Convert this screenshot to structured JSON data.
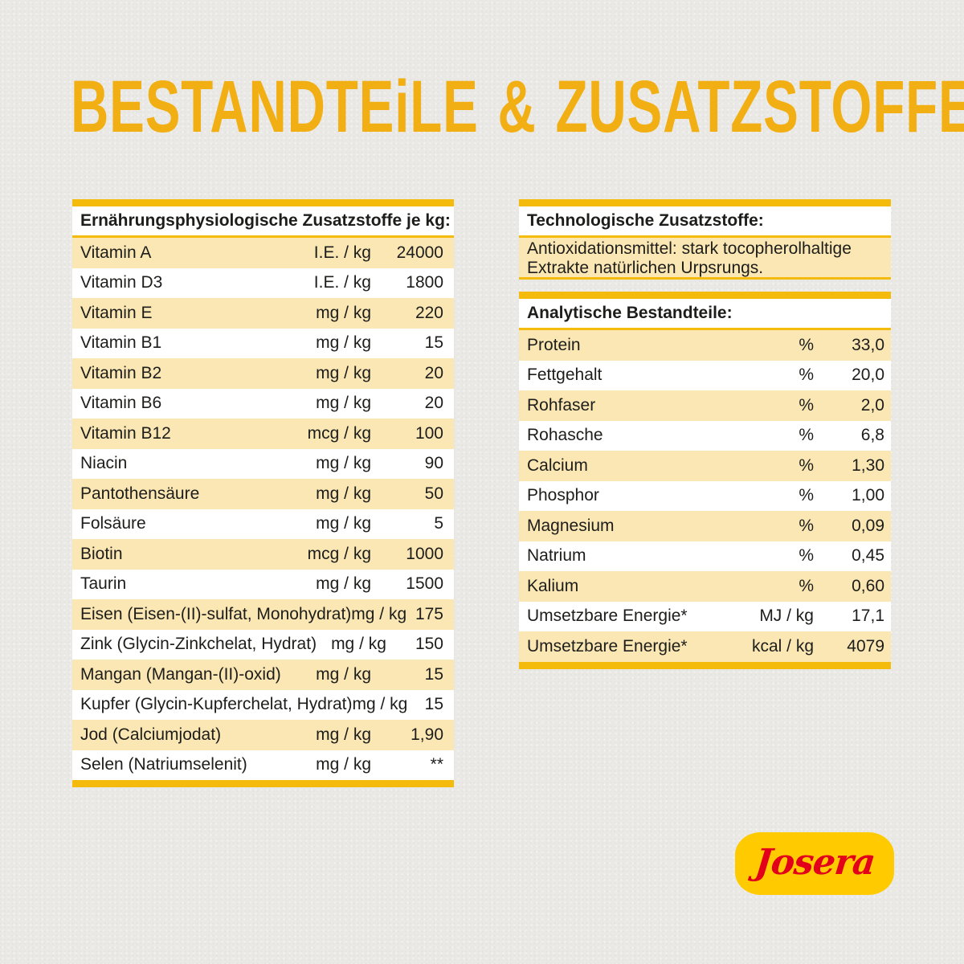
{
  "page": {
    "title": "BESTANDTEiLE & ZUSATZSTOFFE"
  },
  "colors": {
    "paper_background": "#EAE9E6",
    "title_gold": "#F2AF14",
    "bar_gold": "#F5BB0C",
    "row_cream": "#FAE7B4",
    "row_white": "#FFFFFF",
    "text": "#1D1D1B",
    "logo_yellow": "#FFCB00",
    "logo_red": "#E2001A"
  },
  "left_table": {
    "header": "Ernährungsphysiologische Zusatzstoffe je kg:",
    "rows": [
      {
        "name": "Vitamin A",
        "unit": "I.E. / kg",
        "value": "24000"
      },
      {
        "name": "Vitamin D3",
        "unit": "I.E. / kg",
        "value": "1800"
      },
      {
        "name": "Vitamin E",
        "unit": "mg / kg",
        "value": "220"
      },
      {
        "name": "Vitamin B1",
        "unit": "mg / kg",
        "value": "15"
      },
      {
        "name": "Vitamin B2",
        "unit": "mg / kg",
        "value": "20"
      },
      {
        "name": "Vitamin B6",
        "unit": "mg / kg",
        "value": "20"
      },
      {
        "name": "Vitamin B12",
        "unit": "mcg / kg",
        "value": "100"
      },
      {
        "name": "Niacin",
        "unit": "mg / kg",
        "value": "90"
      },
      {
        "name": "Pantothensäure",
        "unit": "mg / kg",
        "value": "50"
      },
      {
        "name": "Folsäure",
        "unit": "mg / kg",
        "value": "5"
      },
      {
        "name": "Biotin",
        "unit": "mcg / kg",
        "value": "1000"
      },
      {
        "name": "Taurin",
        "unit": "mg / kg",
        "value": "1500"
      },
      {
        "name": "Eisen (Eisen-(II)-sulfat, Monohydrat)",
        "unit": "mg / kg",
        "value": "175"
      },
      {
        "name": "Zink (Glycin-Zinkchelat, Hydrat)",
        "unit": "mg / kg",
        "value": "150"
      },
      {
        "name": "Mangan (Mangan-(II)-oxid)",
        "unit": "mg / kg",
        "value": "15"
      },
      {
        "name": "Kupfer (Glycin-Kupferchelat, Hydrat)",
        "unit": "mg / kg",
        "value": "15"
      },
      {
        "name": "Jod (Calciumjodat)",
        "unit": "mg / kg",
        "value": "1,90"
      },
      {
        "name": "Selen (Natriumselenit)",
        "unit": "mg / kg",
        "value": "**"
      }
    ]
  },
  "tech_table": {
    "header": "Technologische Zusatzstoffe:",
    "body_line1": "Antioxidationsmittel: stark tocopherolhaltige",
    "body_line2": "Extrakte natürlichen Urpsrungs."
  },
  "analytic_table": {
    "header": "Analytische Bestandteile:",
    "rows": [
      {
        "name": "Protein",
        "unit": "%",
        "value": "33,0"
      },
      {
        "name": "Fettgehalt",
        "unit": "%",
        "value": "20,0"
      },
      {
        "name": "Rohfaser",
        "unit": "%",
        "value": "2,0"
      },
      {
        "name": "Rohasche",
        "unit": "%",
        "value": "6,8"
      },
      {
        "name": "Calcium",
        "unit": "%",
        "value": "1,30"
      },
      {
        "name": "Phosphor",
        "unit": "%",
        "value": "1,00"
      },
      {
        "name": "Magnesium",
        "unit": "%",
        "value": "0,09"
      },
      {
        "name": "Natrium",
        "unit": "%",
        "value": "0,45"
      },
      {
        "name": "Kalium",
        "unit": "%",
        "value": "0,60"
      },
      {
        "name": "Umsetzbare Energie*",
        "unit": "MJ / kg",
        "value": "17,1"
      },
      {
        "name": "Umsetzbare Energie*",
        "unit": "kcal / kg",
        "value": "4079"
      }
    ]
  },
  "logo": {
    "text": "Josera"
  }
}
